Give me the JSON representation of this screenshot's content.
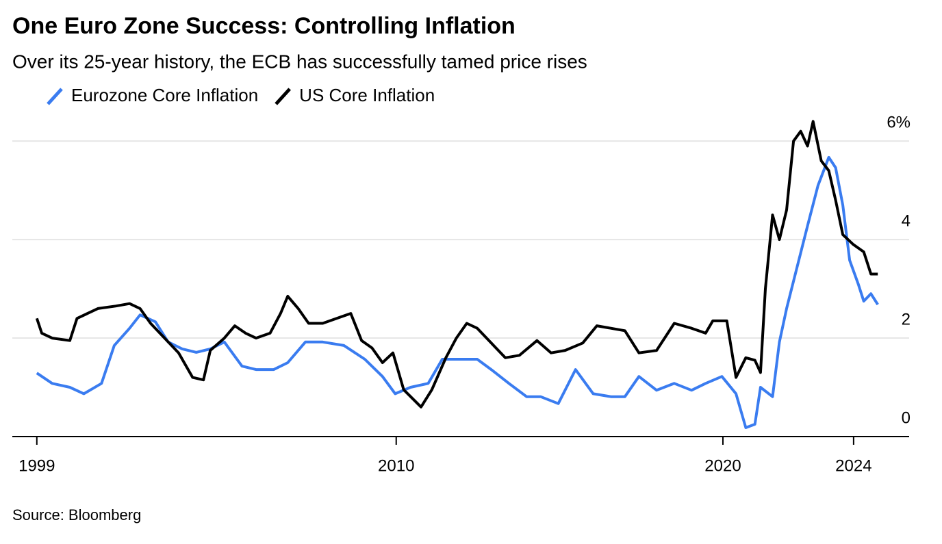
{
  "chart_data": {
    "type": "line",
    "title": "One Euro Zone Success: Controlling Inflation",
    "subtitle": "Over its 25-year history, the ECB has successfully tamed price rises",
    "source": "Source: Bloomberg",
    "xlim": [
      1998.25,
      2025.7
    ],
    "xticks": [
      1999,
      2010,
      2020,
      2024
    ],
    "ylim": [
      0,
      6.6
    ],
    "yticks": [
      0,
      2,
      4,
      {
        "value": 6,
        "label": "6%"
      }
    ],
    "grid": true,
    "legend": "top-left",
    "series": [
      {
        "name": "Eurozone Core Inflation",
        "color": "#3a7cf0",
        "x": [
          1999.0,
          1999.47,
          2000.01,
          2000.44,
          2000.98,
          2001.37,
          2001.84,
          2002.16,
          2002.63,
          2003.02,
          2003.45,
          2003.88,
          2004.31,
          2004.74,
          2005.28,
          2005.71,
          2006.25,
          2006.68,
          2007.22,
          2007.75,
          2008.4,
          2009.04,
          2009.58,
          2009.97,
          2010.44,
          2010.98,
          2011.41,
          2011.95,
          2012.48,
          2012.91,
          2013.45,
          2013.99,
          2014.42,
          2014.96,
          2015.49,
          2016.03,
          2016.57,
          2017.0,
          2017.43,
          2017.97,
          2018.51,
          2019.04,
          2019.47,
          2019.97,
          2020.4,
          2020.7,
          2020.98,
          2021.15,
          2021.52,
          2021.73,
          2021.95,
          2022.27,
          2022.59,
          2022.91,
          2023.24,
          2023.45,
          2023.67,
          2023.88,
          2024.14,
          2024.31,
          2024.53,
          2024.74
        ],
        "values": [
          1.29,
          1.08,
          1.0,
          0.87,
          1.08,
          1.85,
          2.2,
          2.47,
          2.33,
          1.92,
          1.78,
          1.71,
          1.78,
          1.92,
          1.43,
          1.36,
          1.36,
          1.5,
          1.92,
          1.92,
          1.85,
          1.57,
          1.22,
          0.87,
          1.0,
          1.08,
          1.57,
          1.57,
          1.57,
          1.36,
          1.08,
          0.81,
          0.81,
          0.67,
          1.36,
          0.87,
          0.81,
          0.81,
          1.22,
          0.94,
          1.08,
          0.94,
          1.08,
          1.22,
          0.87,
          0.18,
          0.25,
          1.0,
          0.81,
          1.92,
          2.6,
          3.44,
          4.28,
          5.1,
          5.67,
          5.46,
          4.7,
          3.58,
          3.1,
          2.75,
          2.9,
          2.68
        ]
      },
      {
        "name": "US Core Inflation",
        "color": "#000000",
        "x": [
          1999.0,
          1999.15,
          1999.47,
          2000.01,
          2000.23,
          2000.55,
          2000.87,
          2001.41,
          2001.84,
          2002.16,
          2002.48,
          2002.91,
          2003.34,
          2003.77,
          2004.1,
          2004.31,
          2004.74,
          2005.06,
          2005.39,
          2005.71,
          2006.14,
          2006.46,
          2006.68,
          2007.0,
          2007.32,
          2007.75,
          2008.18,
          2008.61,
          2008.94,
          2009.26,
          2009.58,
          2009.9,
          2010.23,
          2010.76,
          2011.09,
          2011.52,
          2011.84,
          2012.16,
          2012.48,
          2012.91,
          2013.34,
          2013.77,
          2014.31,
          2014.74,
          2015.17,
          2015.71,
          2016.14,
          2016.57,
          2017.0,
          2017.43,
          2017.97,
          2018.51,
          2019.04,
          2019.47,
          2019.69,
          2020.12,
          2020.4,
          2020.7,
          2020.98,
          2021.15,
          2021.3,
          2021.52,
          2021.73,
          2021.95,
          2022.16,
          2022.38,
          2022.59,
          2022.76,
          2023.01,
          2023.24,
          2023.45,
          2023.67,
          2023.99,
          2024.31,
          2024.53,
          2024.74
        ],
        "values": [
          2.4,
          2.1,
          2.0,
          1.95,
          2.4,
          2.5,
          2.6,
          2.65,
          2.7,
          2.6,
          2.3,
          2.0,
          1.7,
          1.2,
          1.15,
          1.75,
          2.0,
          2.25,
          2.1,
          2.0,
          2.1,
          2.5,
          2.85,
          2.6,
          2.3,
          2.3,
          2.4,
          2.5,
          1.95,
          1.8,
          1.5,
          1.7,
          0.95,
          0.6,
          0.95,
          1.6,
          2.0,
          2.3,
          2.2,
          1.9,
          1.6,
          1.65,
          1.95,
          1.7,
          1.75,
          1.9,
          2.25,
          2.2,
          2.15,
          1.7,
          1.75,
          2.3,
          2.2,
          2.1,
          2.35,
          2.35,
          1.2,
          1.6,
          1.55,
          1.3,
          3.0,
          4.5,
          4.0,
          4.6,
          6.0,
          6.2,
          5.9,
          6.4,
          5.6,
          5.4,
          4.8,
          4.1,
          3.9,
          3.75,
          3.3,
          3.3
        ]
      }
    ]
  }
}
